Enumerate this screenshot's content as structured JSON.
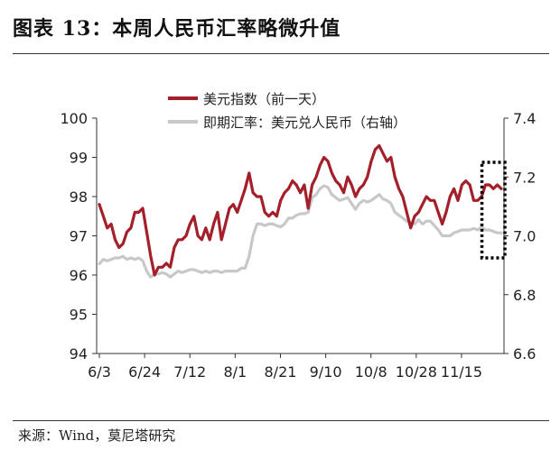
{
  "header": {
    "title": "图表 13：本周人民币汇率略微升值"
  },
  "footer": {
    "source": "来源：Wind，莫尼塔研究"
  },
  "colors": {
    "usd_index": "#a31f2a",
    "cny_rate": "#c8c8c8",
    "highlight_box": "#000000"
  },
  "chart_data": {
    "type": "line",
    "xlabel": "",
    "ylabel": "",
    "legend_position": "top-left",
    "x_tick_labels": [
      "6/3",
      "6/24",
      "7/12",
      "8/1",
      "8/21",
      "9/10",
      "10/8",
      "10/28",
      "11/15"
    ],
    "left_axis": {
      "min": 94,
      "max": 100,
      "ticks": [
        94,
        95,
        96,
        97,
        98,
        99,
        100
      ]
    },
    "right_axis": {
      "min": 6.6,
      "max": 7.4,
      "ticks": [
        "6.6",
        "6.8",
        "7.0",
        "7.2",
        "7.4"
      ]
    },
    "series": [
      {
        "name": "美元指数（前一天）",
        "axis": "left",
        "values": [
          97.8,
          97.5,
          97.2,
          97.3,
          96.9,
          96.7,
          96.8,
          97.1,
          97.2,
          97.6,
          97.6,
          97.7,
          97.1,
          96.5,
          96.0,
          96.2,
          96.2,
          96.3,
          96.2,
          96.7,
          96.9,
          96.9,
          97.0,
          97.3,
          97.5,
          97.0,
          96.9,
          97.2,
          96.9,
          97.3,
          97.6,
          96.9,
          97.3,
          97.7,
          97.8,
          97.6,
          97.9,
          98.2,
          98.6,
          98.1,
          98.0,
          98.0,
          97.6,
          97.5,
          97.6,
          97.5,
          97.9,
          98.1,
          98.2,
          98.4,
          98.3,
          98.1,
          98.3,
          97.7,
          98.3,
          98.5,
          98.8,
          99.0,
          98.9,
          98.6,
          98.4,
          98.3,
          98.1,
          98.5,
          98.3,
          98.0,
          98.2,
          98.3,
          98.5,
          98.9,
          99.2,
          99.3,
          99.1,
          98.9,
          99.0,
          98.5,
          98.2,
          98.0,
          97.6,
          97.2,
          97.5,
          97.6,
          97.8,
          98.0,
          97.9,
          97.9,
          97.6,
          97.3,
          97.6,
          98.0,
          98.2,
          97.9,
          98.3,
          98.4,
          98.3,
          97.9,
          97.9,
          98.0,
          98.3,
          98.3,
          98.2,
          98.3,
          98.2
        ]
      },
      {
        "name": "即期汇率：美元兑人民币（右轴）",
        "axis": "right",
        "values": [
          6.905,
          6.92,
          6.915,
          6.92,
          6.925,
          6.925,
          6.93,
          6.92,
          6.925,
          6.92,
          6.925,
          6.915,
          6.88,
          6.86,
          6.87,
          6.87,
          6.875,
          6.87,
          6.86,
          6.87,
          6.88,
          6.875,
          6.88,
          6.885,
          6.885,
          6.88,
          6.875,
          6.88,
          6.875,
          6.88,
          6.88,
          6.875,
          6.88,
          6.88,
          6.88,
          6.88,
          6.89,
          6.89,
          6.93,
          7.0,
          7.04,
          7.04,
          7.035,
          7.04,
          7.04,
          7.035,
          7.03,
          7.04,
          7.06,
          7.06,
          7.07,
          7.075,
          7.075,
          7.08,
          7.13,
          7.14,
          7.16,
          7.17,
          7.165,
          7.14,
          7.13,
          7.12,
          7.125,
          7.13,
          7.11,
          7.09,
          7.11,
          7.12,
          7.115,
          7.12,
          7.13,
          7.14,
          7.125,
          7.12,
          7.11,
          7.08,
          7.07,
          7.06,
          7.05,
          7.045,
          7.04,
          7.055,
          7.04,
          7.05,
          7.05,
          7.035,
          7.02,
          7.0,
          7.0,
          7.0,
          7.01,
          7.015,
          7.02,
          7.02,
          7.02,
          7.025,
          7.02,
          7.03,
          7.02,
          7.02,
          7.015,
          7.01,
          7.01
        ]
      }
    ],
    "highlight": {
      "from_index": 98,
      "to_index": 102,
      "style": "dotted-box"
    }
  }
}
